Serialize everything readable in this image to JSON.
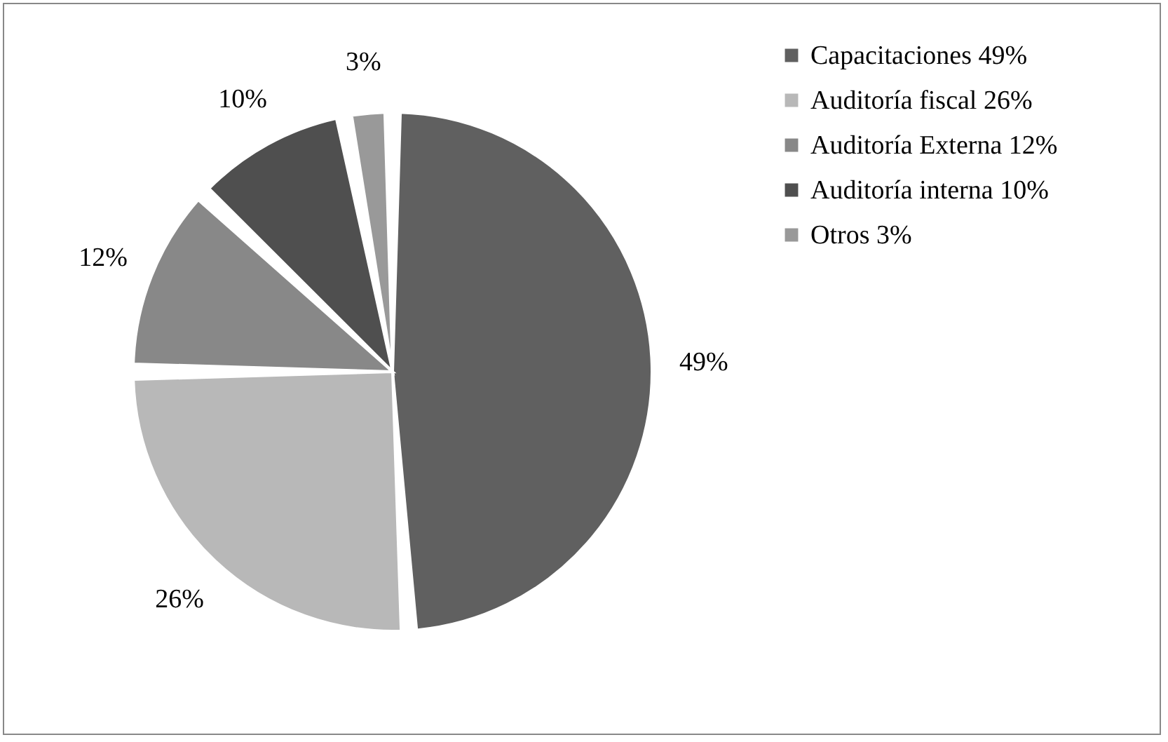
{
  "chart_data": {
    "type": "pie",
    "categories": [
      "Capacitaciones  49%",
      "Auditoría fiscal  26%",
      "Auditoría Externa  12%",
      "Auditoría interna  10%",
      "Otros  3%"
    ],
    "values": [
      49,
      26,
      12,
      10,
      3
    ],
    "colors": [
      "#606060",
      "#b8b8b8",
      "#888888",
      "#4f4f4f",
      "#999999"
    ],
    "value_labels": [
      "49%",
      "26%",
      "12%",
      "10%",
      "3%"
    ],
    "legend": "right"
  }
}
